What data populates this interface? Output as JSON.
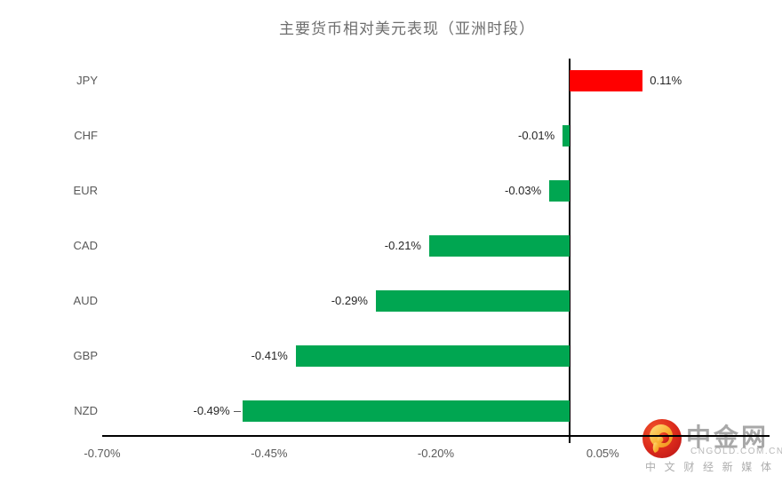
{
  "chart_data": {
    "type": "bar",
    "orientation": "horizontal",
    "title": "主要货币相对美元表现（亚洲时段）",
    "categories": [
      "JPY",
      "CHF",
      "EUR",
      "CAD",
      "AUD",
      "GBP",
      "NZD"
    ],
    "values": [
      0.11,
      -0.01,
      -0.03,
      -0.21,
      -0.29,
      -0.41,
      -0.49
    ],
    "data_labels": [
      "0.11%",
      "-0.01%",
      "-0.03%",
      "-0.21%",
      "-0.29%",
      "-0.41%",
      "-0.49%"
    ],
    "x_tick_labels": [
      "-0.70%",
      "-0.45%",
      "-0.20%",
      "0.05%"
    ],
    "x_tick_values": [
      -0.7,
      -0.45,
      -0.2,
      0.05
    ],
    "xlim": [
      -0.7,
      0.3
    ],
    "grid": false,
    "legend": "none",
    "positive_color": "#ff0000",
    "negative_color": "#00a651",
    "axis_color": "#000000",
    "leader_lines": [
      "NZD"
    ]
  },
  "watermark": {
    "brand": "中金网",
    "domain": "CNGOLD.COM.CN",
    "tagline": "中文财经新媒体",
    "logo_icon": "cngold-swirl-icon",
    "logo_red": "#d6301d",
    "logo_gold": "#f9b233"
  }
}
